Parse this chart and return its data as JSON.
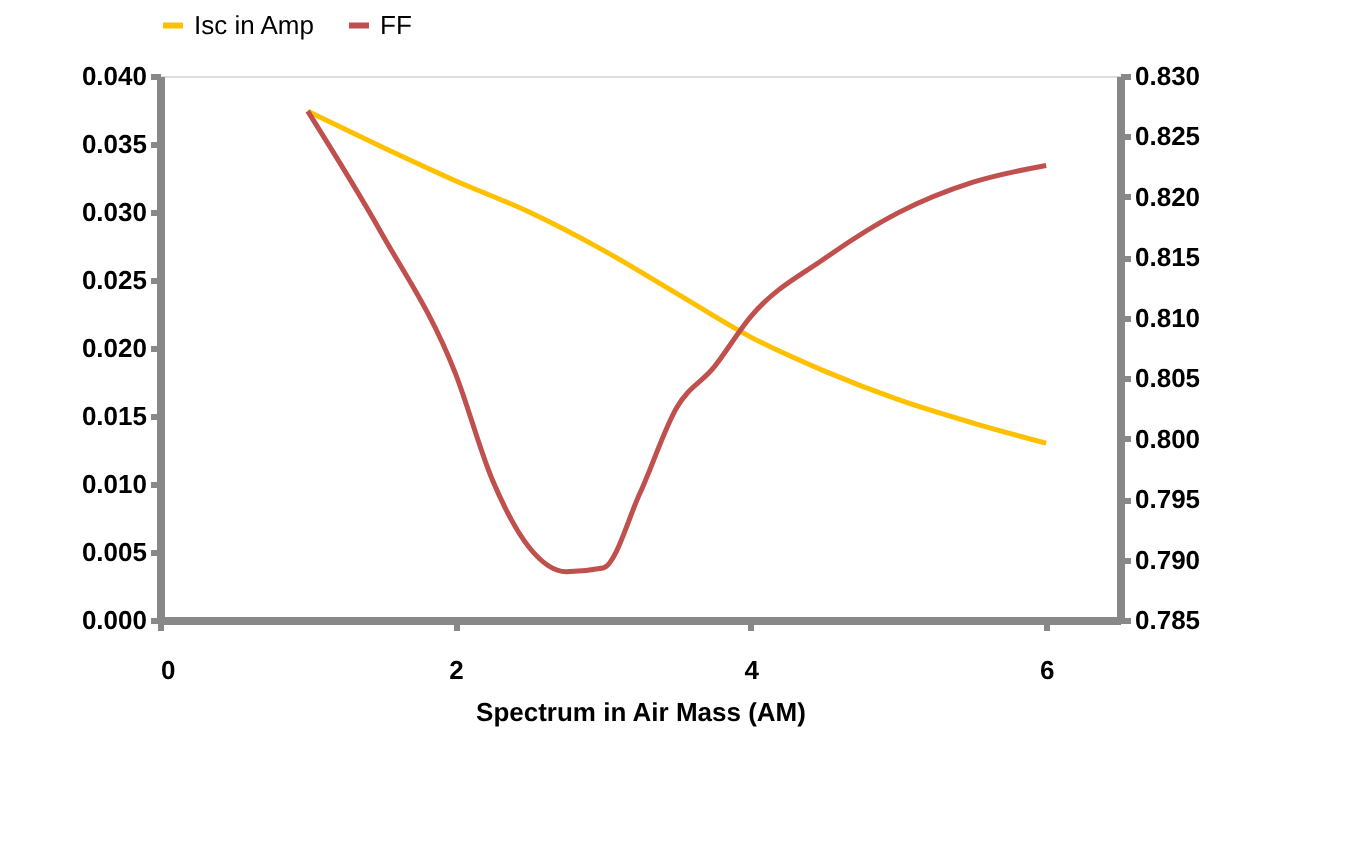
{
  "chart_data": {
    "type": "line",
    "xlabel": "Spectrum in Air Mass (AM)",
    "xlim": [
      0,
      6.5
    ],
    "xticks": [
      0,
      2,
      4,
      6
    ],
    "ylim": [
      0,
      0.04
    ],
    "yticks": [
      {
        "value": 0,
        "label": "0.000"
      },
      {
        "value": 0.005,
        "label": "0.005"
      },
      {
        "value": 0.01,
        "label": "0.010"
      },
      {
        "value": 0.015,
        "label": "0.015"
      },
      {
        "value": 0.02,
        "label": "0.020"
      },
      {
        "value": 0.025,
        "label": "0.025"
      },
      {
        "value": 0.03,
        "label": "0.030"
      },
      {
        "value": 0.035,
        "label": "0.035"
      },
      {
        "value": 0.04,
        "label": "0.040"
      }
    ],
    "y2lim": [
      0.785,
      0.83
    ],
    "y2ticks": [
      0.785,
      {
        "value": 0.79,
        "label": "0.790"
      },
      0.795,
      {
        "value": 0.8,
        "label": "0.800"
      },
      0.805,
      {
        "value": 0.81,
        "label": "0.810"
      },
      0.815,
      {
        "value": 0.82,
        "label": "0.820"
      },
      0.825,
      {
        "value": 0.83,
        "label": "0.830"
      }
    ],
    "grid": false,
    "legend": "top",
    "marker": "none",
    "line_style": "solid",
    "series": [
      {
        "name": "Isc in Amp",
        "color": "#ffc000",
        "x": [
          1,
          1.5,
          2,
          2.5,
          3,
          3.5,
          4,
          4.5,
          5,
          5.5,
          6
        ],
        "values": [
          0.0374,
          0.0348,
          0.0323,
          0.03,
          0.0272,
          0.024,
          0.0208,
          0.0183,
          0.0162,
          0.0145,
          0.013
        ]
      },
      {
        "name": "FF",
        "color": "#c0504d",
        "axis": "y2",
        "x": [
          1,
          1.5,
          2,
          2.25,
          2.5,
          2.75,
          3,
          3.25,
          3.5,
          3.75,
          4,
          4.5,
          5,
          5.5,
          6
        ],
        "values": [
          0.8271,
          0.817,
          0.8054,
          0.7966,
          0.791,
          0.789,
          0.7893,
          0.7955,
          0.8026,
          0.8059,
          0.8101,
          0.8149,
          0.8187,
          0.8212,
          0.8226
        ]
      }
    ]
  }
}
